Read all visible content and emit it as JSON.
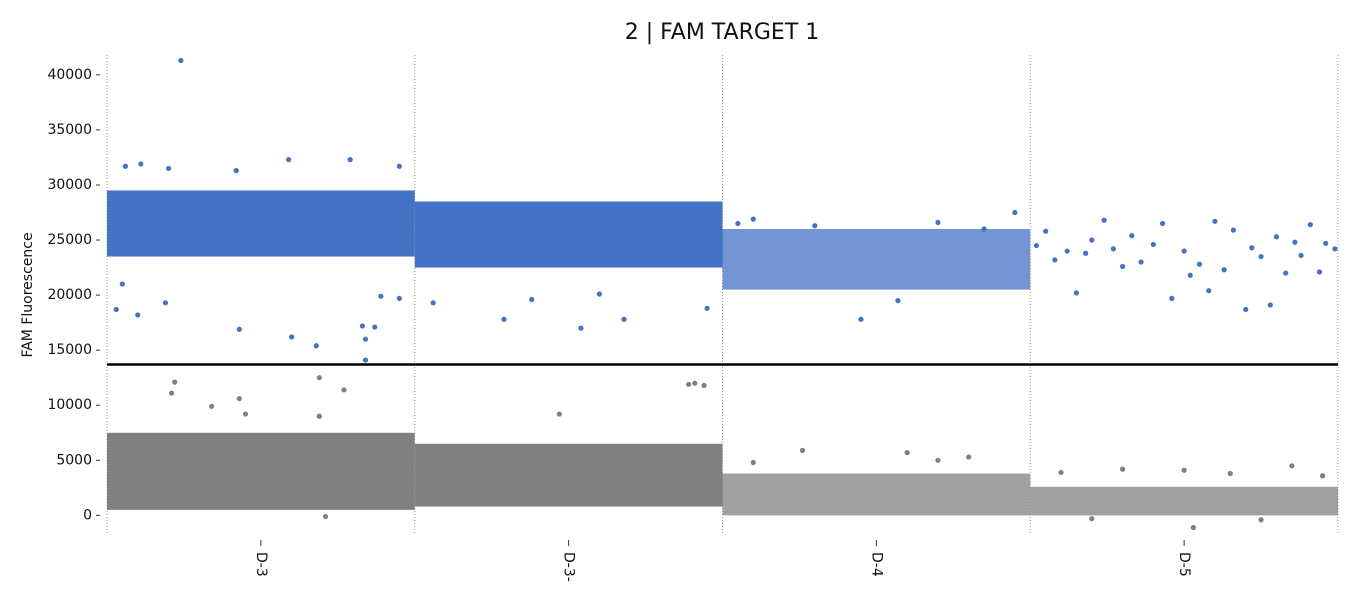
{
  "chart_data": {
    "type": "scatter",
    "title": "2 | FAM TARGET 1",
    "y_label": "FAM Fluorescence",
    "categories": [
      "D-3",
      "D-3-",
      "D-4",
      "D-5"
    ],
    "xlim": [
      0,
      4
    ],
    "ylim": [
      -1600,
      41800
    ],
    "yticks": [
      0,
      5000,
      10000,
      15000,
      20000,
      25000,
      30000,
      35000,
      40000
    ],
    "grid": true,
    "threshold": 13700,
    "series": [
      {
        "color": "#4472c4",
        "bands": [
          [
            23500,
            29500
          ],
          [
            22500,
            28500
          ],
          [
            20500,
            26000
          ],
          null
        ],
        "x": [
          0.03,
          0.05,
          0.1,
          0.19,
          0.24,
          0.43,
          0.6,
          0.68,
          0.83,
          0.84,
          0.84,
          0.87,
          0.95,
          0.06,
          0.11,
          0.2,
          0.42,
          0.59,
          0.79,
          0.95,
          0.89,
          1.06,
          1.29,
          1.38,
          1.54,
          1.68,
          1.6,
          1.95,
          2.45,
          2.57,
          2.1,
          2.95,
          2.05,
          2.3,
          2.7,
          2.85,
          3.02,
          3.05,
          3.08,
          3.12,
          3.15,
          3.18,
          3.2,
          3.24,
          3.27,
          3.3,
          3.33,
          3.36,
          3.4,
          3.43,
          3.46,
          3.5,
          3.52,
          3.55,
          3.58,
          3.6,
          3.63,
          3.66,
          3.7,
          3.72,
          3.75,
          3.78,
          3.8,
          3.83,
          3.86,
          3.88,
          3.91,
          3.94,
          3.96,
          3.99
        ],
        "values": [
          18700,
          21000,
          18200,
          19300,
          41300,
          16900,
          16200,
          15400,
          17200,
          16000,
          14100,
          17100,
          19700,
          31700,
          31900,
          31500,
          31300,
          32300,
          32300,
          31700,
          19900,
          19300,
          17800,
          19600,
          17000,
          17800,
          20100,
          18800,
          17800,
          19500,
          26900,
          27500,
          26500,
          26300,
          26600,
          26000,
          24500,
          25800,
          23200,
          24000,
          20200,
          23800,
          25000,
          26800,
          24200,
          22600,
          25400,
          23000,
          24600,
          26500,
          19700,
          24000,
          21800,
          22800,
          20400,
          26700,
          22300,
          25900,
          18700,
          24300,
          23500,
          19100,
          25300,
          22000,
          24800,
          23600,
          26400,
          22100,
          24700,
          24200
        ]
      },
      {
        "color": "#808080",
        "bands": [
          [
            500,
            7500
          ],
          [
            800,
            6500
          ],
          [
            0,
            3800
          ],
          [
            0,
            2600
          ]
        ],
        "x": [
          0.22,
          0.21,
          0.34,
          0.43,
          0.45,
          0.69,
          0.69,
          0.77,
          0.71,
          1.47,
          1.89,
          1.91,
          1.94,
          2.26,
          2.6,
          2.8,
          2.1,
          2.7,
          3.3,
          3.5,
          3.53,
          3.85,
          3.2,
          3.1,
          3.65,
          3.95,
          3.75
        ],
        "values": [
          12100,
          11100,
          9900,
          10600,
          9200,
          9000,
          12500,
          11400,
          -100,
          9200,
          11900,
          12000,
          11800,
          5900,
          5700,
          5300,
          4800,
          5000,
          4200,
          4100,
          -1100,
          4500,
          -300,
          3900,
          3800,
          3600,
          -400
        ]
      }
    ]
  }
}
